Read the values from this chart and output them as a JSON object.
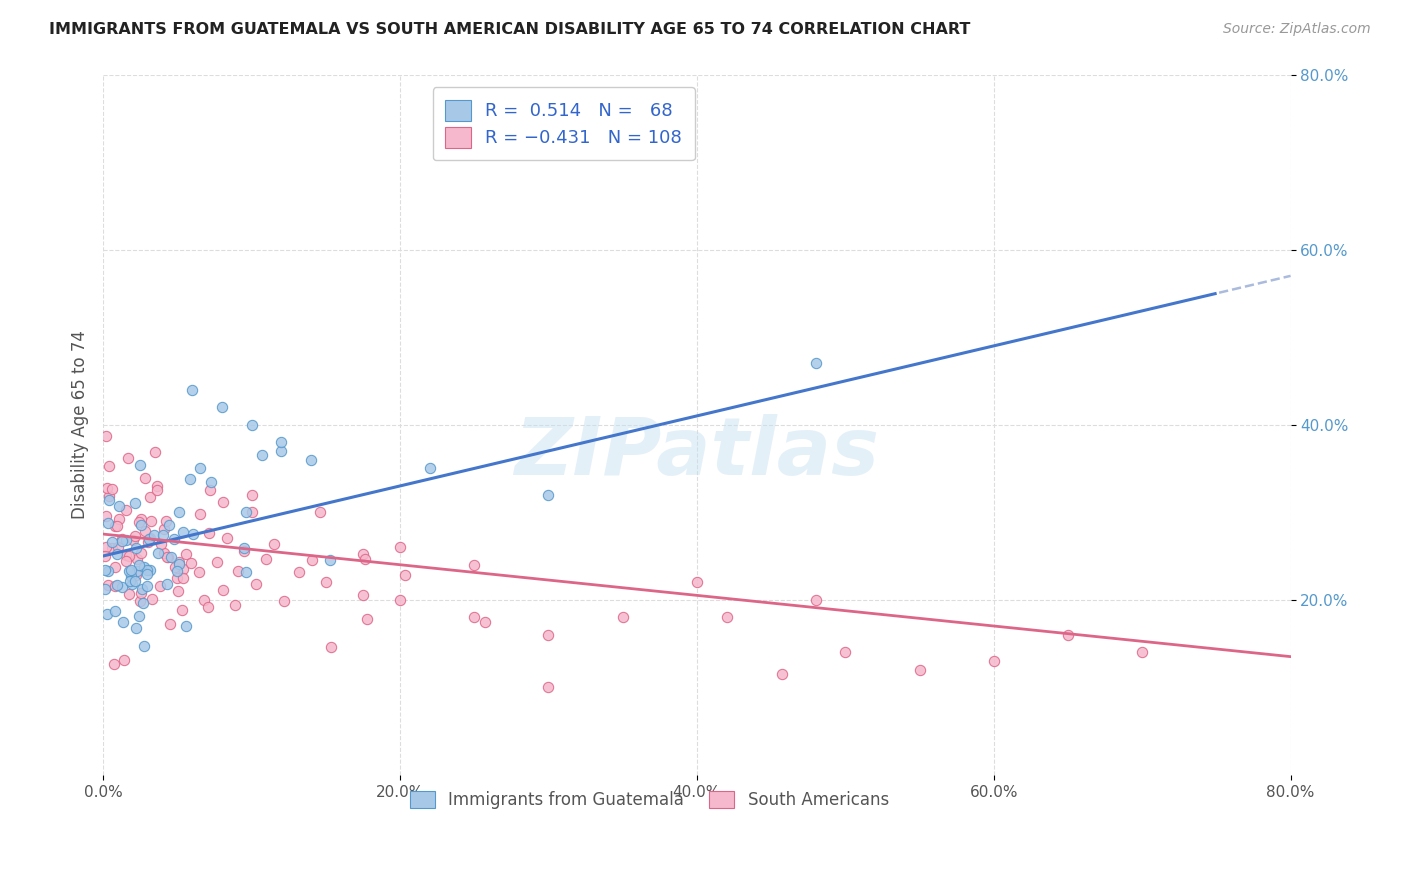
{
  "title": "IMMIGRANTS FROM GUATEMALA VS SOUTH AMERICAN DISABILITY AGE 65 TO 74 CORRELATION CHART",
  "source": "Source: ZipAtlas.com",
  "ylabel": "Disability Age 65 to 74",
  "xlim": [
    0.0,
    0.8
  ],
  "ylim": [
    0.0,
    0.8
  ],
  "xticks": [
    0.0,
    0.2,
    0.4,
    0.6,
    0.8
  ],
  "yticks": [
    0.2,
    0.4,
    0.6,
    0.8
  ],
  "xticklabels": [
    "0.0%",
    "20.0%",
    "40.0%",
    "60.0%",
    "80.0%"
  ],
  "yticklabels": [
    "20.0%",
    "40.0%",
    "60.0%",
    "80.0%"
  ],
  "guatemala_fill": "#a8c8e8",
  "guatemala_edge": "#5599cc",
  "south_american_fill": "#f5b8cc",
  "south_american_edge": "#dd6688",
  "trend_blue": "#4477cc",
  "trend_pink": "#dd6688",
  "trend_dash_color": "#aabbdd",
  "R_guatemala": 0.514,
  "N_guatemala": 68,
  "R_south_american": -0.431,
  "N_south_american": 108,
  "watermark": "ZIPatlas",
  "bg": "#ffffff",
  "grid_color": "#dddddd",
  "legend_label_color": "#3366cc",
  "bottom_label_color": "#555555",
  "title_color": "#222222",
  "source_color": "#999999"
}
